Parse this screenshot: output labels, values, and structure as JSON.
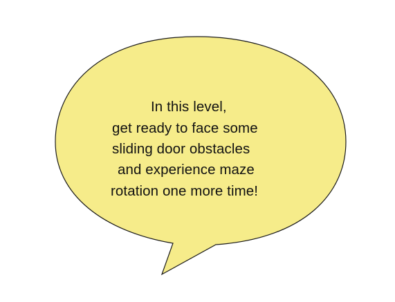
{
  "speech_bubble": {
    "fill_color": "#f6ec8a",
    "stroke_color": "#1a1a1a",
    "lines": [
      "In this level,",
      "get ready to face some",
      "sliding door obstacles",
      "and experience maze",
      "rotation one more time!"
    ]
  }
}
